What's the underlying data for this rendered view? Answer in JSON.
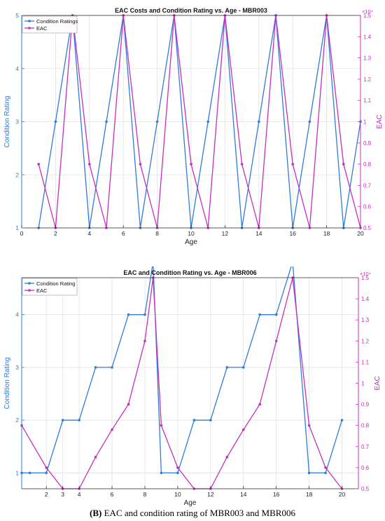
{
  "caption": {
    "label": "(B)",
    "text": "EAC and condition rating of MBR003 and MBR006"
  },
  "colors": {
    "left_series": "#2f7bd8",
    "right_series": "#c42fbf",
    "axis": "#333333",
    "grid": "#e2e2e2"
  },
  "chart_data": [
    {
      "type": "line",
      "title": "EAC Costs and Condition Rating vs. Age - MBR003",
      "xlabel": "Age",
      "ylabel_left": "Condition Rating",
      "ylabel_right": "EAC",
      "right_exponent": "×10⁴",
      "xlim": [
        0,
        20
      ],
      "ylim_left": [
        1,
        5
      ],
      "ylim_right": [
        0.5,
        1.5
      ],
      "xticks": [
        0,
        2,
        4,
        6,
        8,
        10,
        12,
        14,
        16,
        18,
        20
      ],
      "yticks_left": [
        1,
        2,
        3,
        4,
        5
      ],
      "yticks_right": [
        0.5,
        0.6,
        0.7,
        0.8,
        0.9,
        1,
        1.1,
        1.2,
        1.3,
        1.4,
        1.5
      ],
      "grid": true,
      "legend_position": "top-left",
      "series": [
        {
          "name": "Condition Ratings",
          "axis": "left",
          "x": [
            1,
            2,
            3,
            4,
            5,
            6,
            7,
            8,
            9,
            10,
            11,
            12,
            13,
            14,
            15,
            16,
            17,
            18,
            19,
            20
          ],
          "y": [
            1,
            3,
            5,
            1,
            3,
            5,
            1,
            3,
            5,
            1,
            3,
            5,
            1,
            3,
            5,
            1,
            3,
            5,
            1,
            3
          ]
        },
        {
          "name": "EAC",
          "axis": "right",
          "x": [
            1,
            2,
            3,
            4,
            5,
            6,
            7,
            8,
            9,
            10,
            11,
            12,
            13,
            14,
            15,
            16,
            17,
            18,
            19,
            20
          ],
          "y": [
            0.8,
            0.5,
            1.5,
            0.8,
            0.5,
            1.5,
            0.8,
            0.5,
            1.5,
            0.8,
            0.5,
            1.5,
            0.8,
            0.5,
            1.5,
            0.8,
            0.5,
            1.5,
            0.8,
            0.5
          ]
        }
      ]
    },
    {
      "type": "line",
      "title": "EAC and Condition Rating vs. Age - MBR006",
      "xlabel": "Age",
      "ylabel_left": "Condition Rating",
      "ylabel_right": "EAC",
      "right_exponent": "×10⁴",
      "xlim": [
        0.5,
        21
      ],
      "ylim_left": [
        0.7,
        4.7
      ],
      "ylim_right": [
        0.5,
        1.5
      ],
      "xticks": [
        2,
        3,
        4,
        6,
        8,
        10,
        12,
        14,
        16,
        18,
        20
      ],
      "yticks_left": [
        1,
        2,
        3,
        4
      ],
      "yticks_right": [
        0.5,
        0.6,
        0.7,
        0.8,
        0.9,
        1,
        1.1,
        1.2,
        1.3,
        1.4,
        1.5
      ],
      "grid": true,
      "legend_position": "top-left",
      "series": [
        {
          "name": "Condition Rating",
          "axis": "left",
          "x": [
            0.5,
            1,
            2,
            3,
            4,
            5,
            6,
            7,
            8,
            8.5,
            9,
            10,
            11,
            12,
            13,
            14,
            15,
            16,
            17,
            18,
            19,
            20
          ],
          "y": [
            1,
            1,
            1,
            2,
            2,
            3,
            3,
            4,
            4,
            5,
            1,
            1,
            2,
            2,
            3,
            3,
            4,
            4,
            5,
            1,
            1,
            2
          ]
        },
        {
          "name": "EAC",
          "axis": "right",
          "x": [
            0.5,
            2,
            3,
            4,
            5,
            6,
            7,
            8,
            8.5,
            9,
            10,
            11,
            12,
            13,
            14,
            15,
            16,
            17,
            18,
            19,
            20
          ],
          "y": [
            0.8,
            0.6,
            0.5,
            0.5,
            0.65,
            0.78,
            0.9,
            1.2,
            1.5,
            0.8,
            0.6,
            0.5,
            0.5,
            0.65,
            0.78,
            0.9,
            1.2,
            1.5,
            0.8,
            0.6,
            0.5
          ]
        }
      ]
    }
  ]
}
